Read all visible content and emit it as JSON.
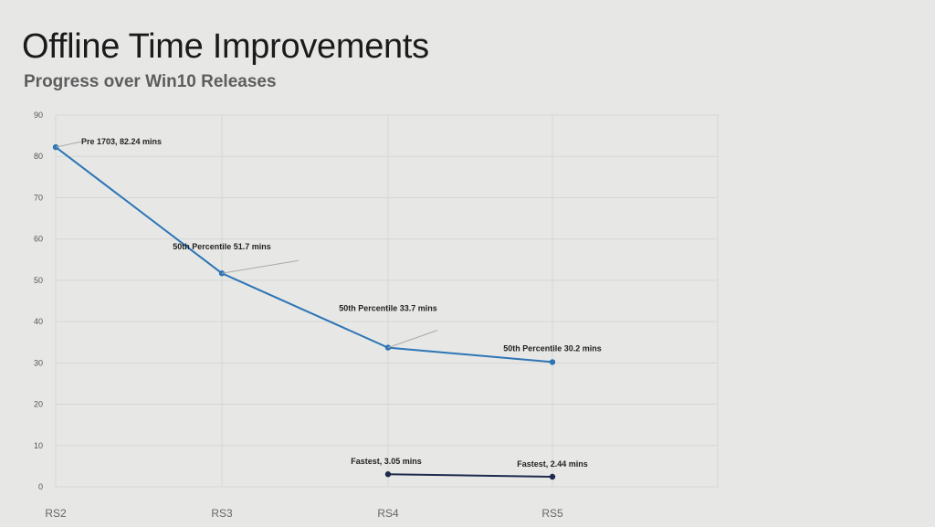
{
  "slide": {
    "title": "Offline Time Improvements",
    "subtitle": "Progress over Win10 Releases"
  },
  "colors": {
    "background": "#e7e8e6",
    "gridline": "#d6d7d5",
    "series_main": "#2e75b6",
    "series_fastest": "#1f2a4d"
  },
  "chart_data": {
    "type": "line",
    "title": "",
    "xlabel": "",
    "ylabel": "",
    "categories": [
      "RS2",
      "RS3",
      "RS4",
      "RS5"
    ],
    "ylim": [
      0,
      90
    ],
    "yticks": [
      0,
      10,
      20,
      30,
      40,
      50,
      60,
      70,
      80,
      90
    ],
    "grid": true,
    "legend": "none",
    "series": [
      {
        "values": [
          82.24,
          51.7,
          33.7,
          30.2
        ],
        "color": "#2e75b6",
        "data_labels": [
          "Pre 1703, 82.24 mins",
          "50th Percentile 51.7 mins",
          "50th Percentile 33.7 mins",
          "50th Percentile 30.2 mins"
        ]
      },
      {
        "values": [
          null,
          null,
          3.05,
          2.44
        ],
        "color": "#1f2a4d",
        "data_labels": [
          null,
          null,
          "Fastest, 3.05 mins",
          "Fastest, 2.44 mins"
        ]
      }
    ]
  }
}
